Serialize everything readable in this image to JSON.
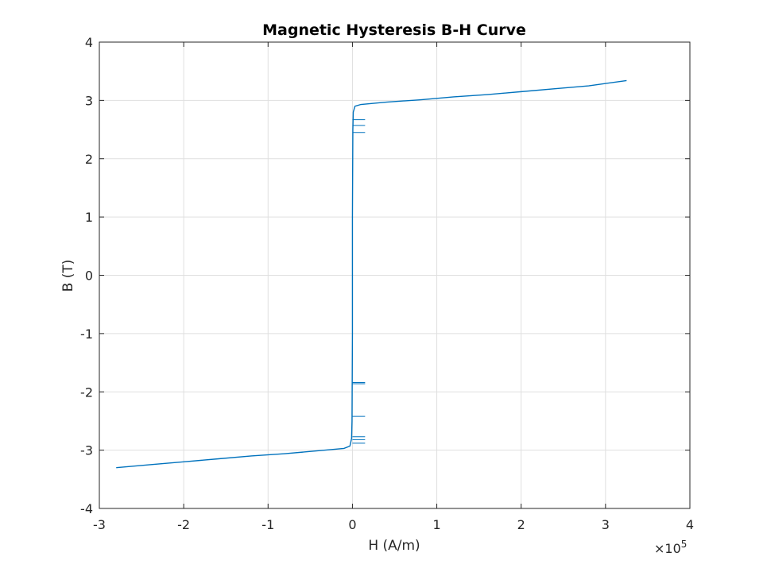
{
  "chart_data": {
    "type": "line",
    "title": "Magnetic Hysteresis B-H Curve",
    "xlabel": "H (A/m)",
    "ylabel": "B (T)",
    "x_multiplier": "×10",
    "x_multiplier_exponent": "5",
    "xlim": [
      -3,
      4
    ],
    "ylim": [
      -4,
      4
    ],
    "xticks": [
      "-3",
      "-2",
      "-1",
      "0",
      "1",
      "2",
      "3",
      "4"
    ],
    "yticks": [
      "-4",
      "-3",
      "-2",
      "-1",
      "0",
      "1",
      "2",
      "3",
      "4"
    ],
    "x_unit_scale": 100000,
    "grid": true,
    "color": "#0072bd",
    "series": [
      {
        "x": [
          -2.8,
          -2.4,
          -2.0,
          -1.6,
          -1.2,
          -0.8,
          -0.4,
          -0.1,
          -0.03,
          -0.01,
          -0.005,
          0.0,
          0.0,
          0.005,
          0.01,
          0.03,
          0.1,
          0.4,
          0.8,
          1.2,
          1.6,
          2.0,
          2.4,
          2.8,
          3.25
        ],
        "y": [
          -3.3,
          -3.25,
          -3.2,
          -3.15,
          -3.1,
          -3.06,
          -3.01,
          -2.97,
          -2.93,
          -2.8,
          -2.5,
          -1.0,
          1.0,
          2.5,
          2.8,
          2.9,
          2.93,
          2.97,
          3.01,
          3.06,
          3.1,
          3.15,
          3.2,
          3.25,
          3.34
        ]
      }
    ],
    "spikes": [
      {
        "y": 2.67,
        "x_end": 0.15
      },
      {
        "y": 2.57,
        "x_end": 0.15
      },
      {
        "y": 2.45,
        "x_end": 0.15
      },
      {
        "y": -1.84,
        "x_end": 0.15
      },
      {
        "y": -1.86,
        "x_end": 0.15
      },
      {
        "y": -2.42,
        "x_end": 0.15
      },
      {
        "y": -2.77,
        "x_end": 0.15
      },
      {
        "y": -2.82,
        "x_end": 0.15
      },
      {
        "y": -2.88,
        "x_end": 0.15
      }
    ]
  }
}
